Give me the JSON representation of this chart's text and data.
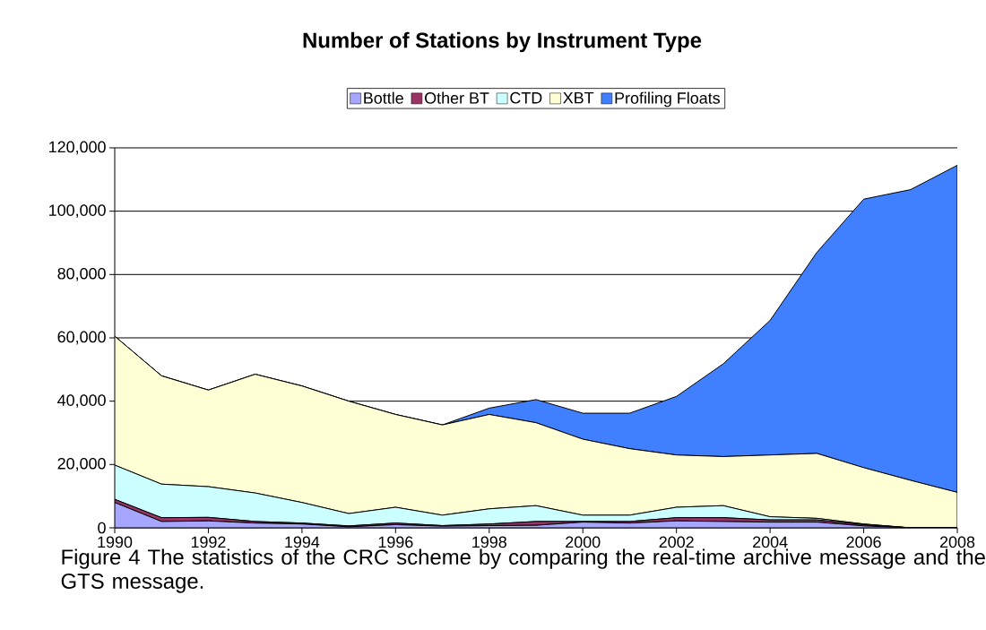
{
  "chart_data": {
    "type": "area",
    "stacked": true,
    "title": "Number of Stations by Instrument Type",
    "x": [
      1990,
      1991,
      1992,
      1993,
      1994,
      1995,
      1996,
      1997,
      1998,
      1999,
      2000,
      2001,
      2002,
      2003,
      2004,
      2005,
      2006,
      2007,
      2008
    ],
    "series": [
      {
        "name": "Bottle",
        "color": "#a6a6ff",
        "values": [
          8000,
          2000,
          2200,
          1500,
          1200,
          300,
          1000,
          500,
          700,
          800,
          1800,
          1500,
          2200,
          2000,
          1800,
          1800,
          600,
          0,
          0
        ]
      },
      {
        "name": "Other BT",
        "color": "#993366",
        "values": [
          1000,
          1200,
          1100,
          500,
          300,
          300,
          500,
          200,
          500,
          1200,
          200,
          500,
          1000,
          1200,
          700,
          700,
          400,
          0,
          0
        ]
      },
      {
        "name": "CTD",
        "color": "#ccffff",
        "values": [
          10800,
          10600,
          9700,
          9000,
          6500,
          3900,
          5000,
          3300,
          4800,
          5000,
          2000,
          2000,
          3300,
          3800,
          1000,
          500,
          200,
          0,
          0
        ]
      },
      {
        "name": "XBT",
        "color": "#ffffd5",
        "values": [
          40700,
          34200,
          30500,
          37500,
          36800,
          35500,
          29300,
          28500,
          29800,
          26200,
          24000,
          21000,
          16500,
          15500,
          19500,
          20500,
          17800,
          15000,
          11200
        ]
      },
      {
        "name": "Profiling Floats",
        "color": "#4080ff",
        "values": [
          0,
          0,
          0,
          0,
          0,
          0,
          0,
          0,
          2000,
          7300,
          8200,
          11200,
          18500,
          29300,
          42500,
          63500,
          84800,
          91800,
          103300
        ]
      }
    ],
    "xlim": [
      1990,
      2008
    ],
    "xticks": [
      1990,
      1992,
      1994,
      1996,
      1998,
      2000,
      2002,
      2004,
      2006,
      2008
    ],
    "ylim": [
      0,
      120000
    ],
    "yticks": [
      {
        "value": 0,
        "label": "0"
      },
      {
        "value": 20000,
        "label": "20,000"
      },
      {
        "value": 40000,
        "label": "40,000"
      },
      {
        "value": 60000,
        "label": "60,000"
      },
      {
        "value": 80000,
        "label": "80,000"
      },
      {
        "value": 100000,
        "label": "100,000"
      },
      {
        "value": 120000,
        "label": "120,000"
      }
    ],
    "grid": "y",
    "legend": "top",
    "annotations": [
      "Figure 4 The statistics of the CRC scheme by comparing the real-time archive message and the GTS message."
    ]
  }
}
